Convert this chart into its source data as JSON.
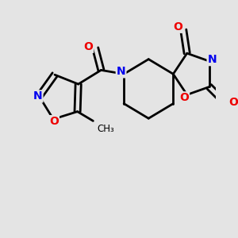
{
  "bg_color": "#e4e4e4",
  "bond_color": "#000000",
  "bond_width": 2.0,
  "atom_colors": {
    "N": "#0000ee",
    "O": "#ee0000",
    "C": "#000000"
  },
  "font_size_atom": 10,
  "font_size_small": 8.5
}
